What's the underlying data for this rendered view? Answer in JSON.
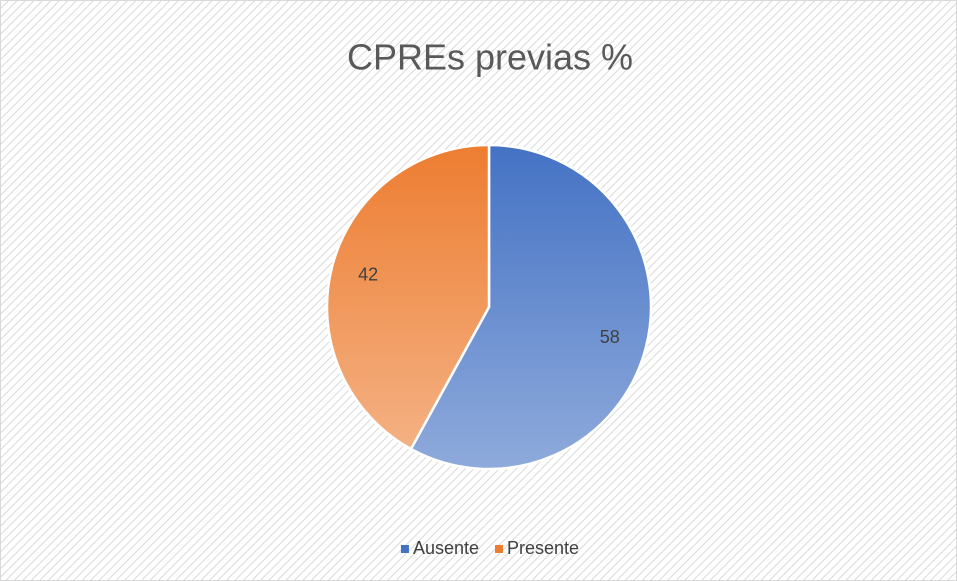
{
  "chart_data": {
    "type": "pie",
    "title": "CPREs previas %",
    "categories": [
      "Ausente",
      "Presente"
    ],
    "values": [
      58,
      42
    ],
    "colors": [
      "#4472c4",
      "#ed7d31"
    ],
    "legend": "bottom"
  }
}
